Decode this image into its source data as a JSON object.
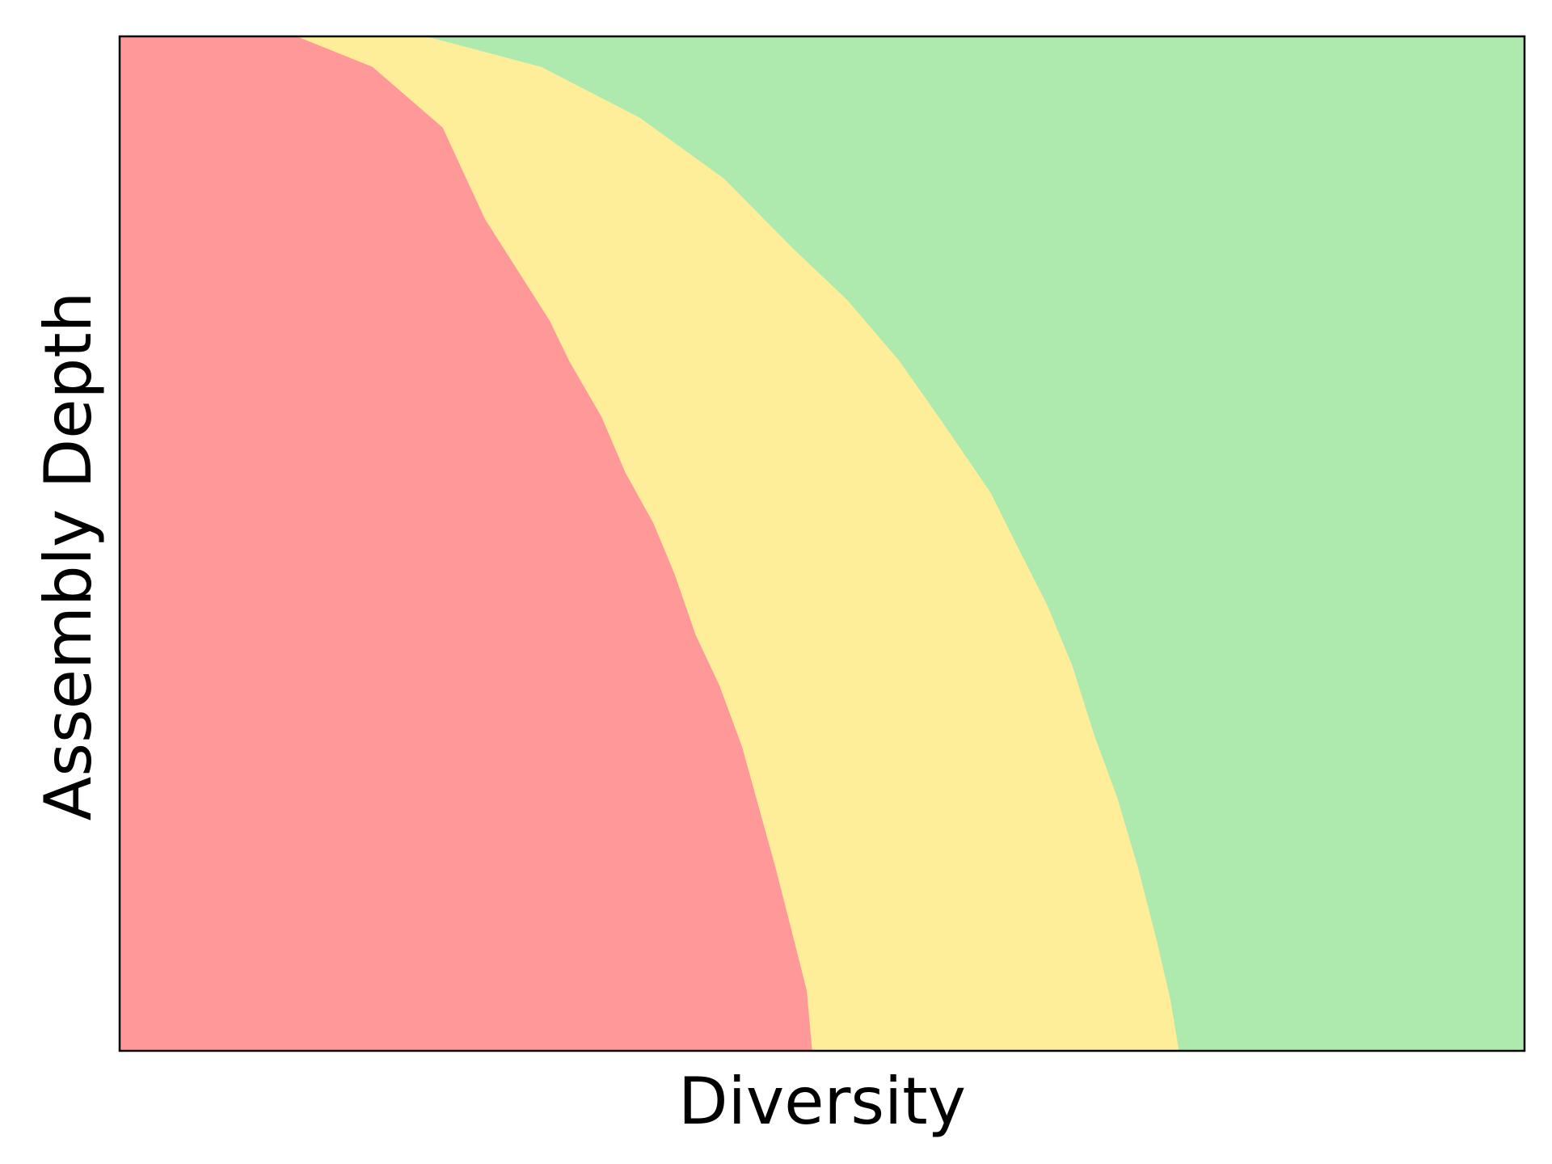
{
  "chart_data": {
    "type": "area",
    "title": "",
    "xlabel": "Diversity",
    "ylabel": "Assembly Depth",
    "xticks": [],
    "yticks": [],
    "grid": false,
    "legend": "none",
    "xlim": [
      0,
      1
    ],
    "ylim": [
      0,
      1
    ],
    "regions": [
      {
        "color": "#ff9999",
        "boundary": {
          "x": [
            0.126,
            0.18,
            0.23,
            0.26,
            0.306,
            0.32,
            0.343,
            0.36,
            0.38,
            0.395,
            0.41,
            0.427,
            0.443,
            0.455,
            0.467,
            0.478,
            0.489,
            0.493
          ],
          "y": [
            1.0,
            0.97,
            0.91,
            0.82,
            0.72,
            0.68,
            0.625,
            0.57,
            0.52,
            0.47,
            0.41,
            0.36,
            0.3,
            0.24,
            0.18,
            0.12,
            0.06,
            0.0
          ]
        }
      },
      {
        "color": "#ffee99",
        "boundary": {
          "x": [
            0.218,
            0.3,
            0.37,
            0.43,
            0.48,
            0.518,
            0.555,
            0.588,
            0.62,
            0.638,
            0.66,
            0.678,
            0.694,
            0.71,
            0.725,
            0.738,
            0.748,
            0.754
          ],
          "y": [
            1.0,
            0.97,
            0.92,
            0.86,
            0.79,
            0.74,
            0.68,
            0.615,
            0.55,
            0.5,
            0.44,
            0.38,
            0.31,
            0.25,
            0.18,
            0.11,
            0.05,
            0.0
          ]
        }
      },
      {
        "color": "#aeeaae"
      }
    ]
  }
}
